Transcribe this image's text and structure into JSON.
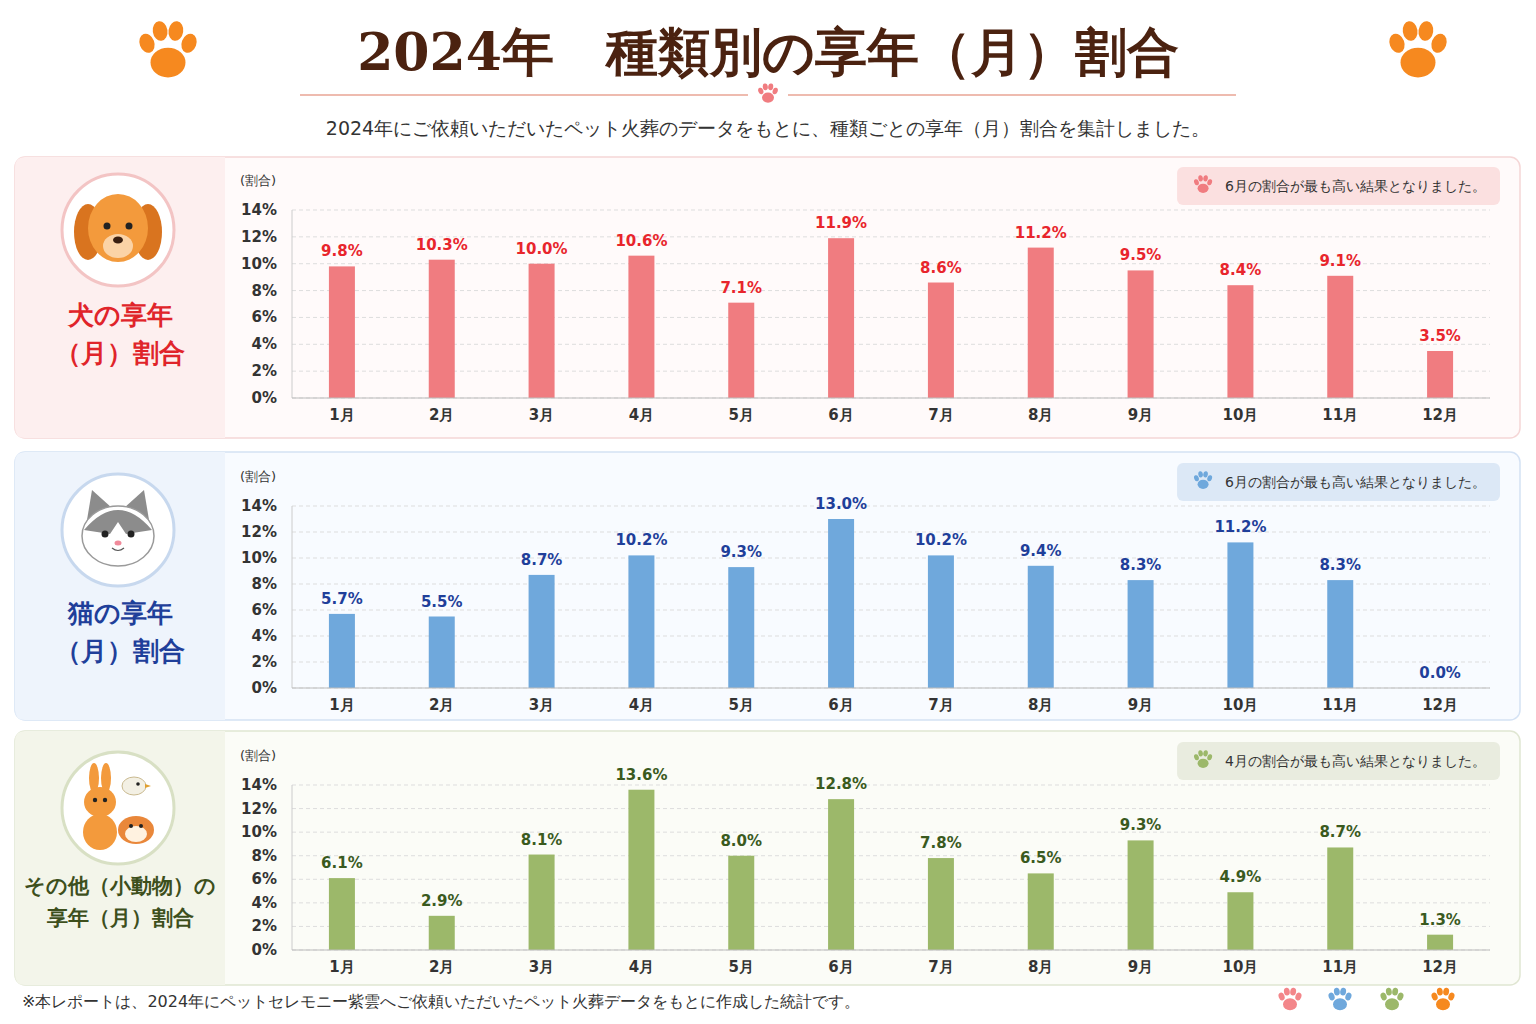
{
  "header": {
    "title": "2024年　種類別の享年（月）割合",
    "subtitle": "2024年にご依頼いただいたペット火葬のデータをもとに、種類ごとの享年（月）割合を集計しました。"
  },
  "chart_data": [
    {
      "type": "bar",
      "title": "犬の享年\n（月）割合",
      "y_label": "(割合)",
      "annotation": "6月の割合が最も高い結果となりました。",
      "categories": [
        "1月",
        "2月",
        "3月",
        "4月",
        "5月",
        "6月",
        "7月",
        "8月",
        "9月",
        "10月",
        "11月",
        "12月"
      ],
      "values": [
        9.8,
        10.3,
        10.0,
        10.6,
        7.1,
        11.9,
        8.6,
        11.2,
        9.5,
        8.4,
        9.1,
        3.5
      ],
      "value_labels": [
        "9.8%",
        "10.3%",
        "10.0%",
        "10.6%",
        "7.1%",
        "11.9%",
        "8.6%",
        "11.2%",
        "9.5%",
        "8.4%",
        "9.1%",
        "3.5%"
      ],
      "color": "#f07c80",
      "ylim": [
        0,
        14
      ],
      "yticks": [
        {
          "value": 0,
          "label": "0%"
        },
        {
          "value": 2,
          "label": "2%"
        },
        {
          "value": 4,
          "label": "4%"
        },
        {
          "value": 6,
          "label": "6%"
        },
        {
          "value": 8,
          "label": "8%"
        },
        {
          "value": 10,
          "label": "10%"
        },
        {
          "value": 12,
          "label": "12%"
        },
        {
          "value": 14,
          "label": "14%"
        }
      ],
      "grid": true,
      "data_labels": true
    },
    {
      "type": "bar",
      "title": "猫の享年\n（月）割合",
      "y_label": "(割合)",
      "annotation": "6月の割合が最も高い結果となりました。",
      "categories": [
        "1月",
        "2月",
        "3月",
        "4月",
        "5月",
        "6月",
        "7月",
        "8月",
        "9月",
        "10月",
        "11月",
        "12月"
      ],
      "values": [
        5.7,
        5.5,
        8.7,
        10.2,
        9.3,
        13.0,
        10.2,
        9.4,
        8.3,
        11.2,
        8.3,
        0.0
      ],
      "value_labels": [
        "5.7%",
        "5.5%",
        "8.7%",
        "10.2%",
        "9.3%",
        "13.0%",
        "10.2%",
        "9.4%",
        "8.3%",
        "11.2%",
        "8.3%",
        "0.0%"
      ],
      "color": "#6fa8dc",
      "ylim": [
        0,
        14
      ],
      "yticks": [
        {
          "value": 0,
          "label": "0%"
        },
        {
          "value": 2,
          "label": "2%"
        },
        {
          "value": 4,
          "label": "4%"
        },
        {
          "value": 6,
          "label": "6%"
        },
        {
          "value": 8,
          "label": "8%"
        },
        {
          "value": 10,
          "label": "10%"
        },
        {
          "value": 12,
          "label": "12%"
        },
        {
          "value": 14,
          "label": "14%"
        }
      ],
      "grid": true,
      "data_labels": true
    },
    {
      "type": "bar",
      "title": "その他（小動物）の\n享年（月）割合",
      "y_label": "(割合)",
      "annotation": "4月の割合が最も高い結果となりました。",
      "categories": [
        "1月",
        "2月",
        "3月",
        "4月",
        "5月",
        "6月",
        "7月",
        "8月",
        "9月",
        "10月",
        "11月",
        "12月"
      ],
      "values": [
        6.1,
        2.9,
        8.1,
        13.6,
        8.0,
        12.8,
        7.8,
        6.5,
        9.3,
        4.9,
        8.7,
        1.3
      ],
      "value_labels": [
        "6.1%",
        "2.9%",
        "8.1%",
        "13.6%",
        "8.0%",
        "12.8%",
        "7.8%",
        "6.5%",
        "9.3%",
        "4.9%",
        "8.7%",
        "1.3%"
      ],
      "color": "#9cb86a",
      "ylim": [
        0,
        14
      ],
      "yticks": [
        {
          "value": 0,
          "label": "0%"
        },
        {
          "value": 2,
          "label": "2%"
        },
        {
          "value": 4,
          "label": "4%"
        },
        {
          "value": 6,
          "label": "6%"
        },
        {
          "value": 8,
          "label": "8%"
        },
        {
          "value": 10,
          "label": "10%"
        },
        {
          "value": 12,
          "label": "12%"
        },
        {
          "value": 14,
          "label": "14%"
        }
      ],
      "grid": true,
      "data_labels": true
    }
  ],
  "footer": {
    "note": "※本レポートは、2024年にペットセレモニー紫雲へご依頼いただいたペット火葬データをもとに作成した統計です。"
  }
}
